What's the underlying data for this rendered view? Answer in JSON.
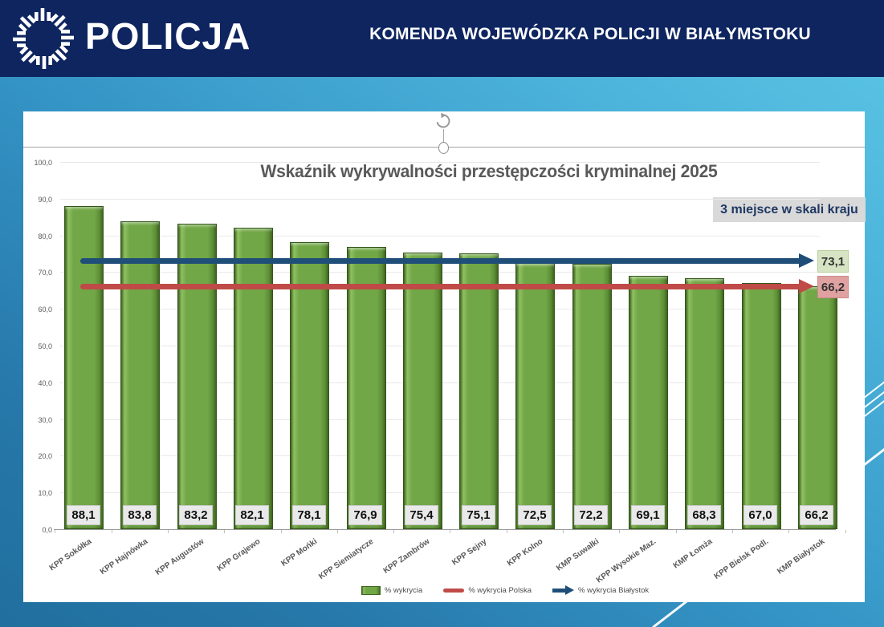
{
  "header": {
    "logo": "policja-star-logo",
    "wordmark": "POLICJA",
    "title": "KOMENDA WOJEWÓDZKA POLICJI W BIAŁYMSTOKU"
  },
  "chart": {
    "title": "Wskaźnik wykrywalności przestępczości kryminalnej 2025",
    "badge": "3 miejsce w skali kraju",
    "legend": [
      {
        "label": "% wykrycia",
        "swatch": "green-bar"
      },
      {
        "label": "% wykrycia Polska",
        "swatch": "red-line"
      },
      {
        "label": "% wykrycia Białystok",
        "swatch": "blue-arrow"
      }
    ]
  },
  "chart_data": {
    "type": "bar",
    "title": "Wskaźnik wykrywalności przestępczości kryminalnej 2025",
    "categories": [
      "KPP Sokółka",
      "KPP Hajnówka",
      "KPP Augustów",
      "KPP Grajewo",
      "KPP Mońki",
      "KPP Siemiatycze",
      "KPP Zambrów",
      "KPP Sejny",
      "KPP Kolno",
      "KMP Suwałki",
      "KPP Wysokie Maz.",
      "KMP Łomża",
      "KPP Bielsk Podl.",
      "KMP Białystok"
    ],
    "values": [
      88.1,
      83.8,
      83.2,
      82.1,
      78.1,
      76.9,
      75.4,
      75.1,
      72.5,
      72.2,
      69.1,
      68.3,
      67.0,
      66.2
    ],
    "value_labels": [
      "88,1",
      "83,8",
      "83,2",
      "82,1",
      "78,1",
      "76,9",
      "75,4",
      "75,1",
      "72,5",
      "72,2",
      "69,1",
      "68,3",
      "67,0",
      "66,2"
    ],
    "ylim": [
      0,
      100
    ],
    "ytick_step": 10,
    "ytick_labels": [
      "0,0",
      "10,0",
      "20,0",
      "30,0",
      "40,0",
      "50,0",
      "60,0",
      "70,0",
      "80,0",
      "90,0",
      "100,0"
    ],
    "grid": true,
    "legend_position": "bottom",
    "reference_lines": [
      {
        "name": "% wykrycia Białystok",
        "value": 73.1,
        "label": "73,1",
        "line_color": "#1f4e79",
        "tag_bg": "#d7e4c3",
        "tag_border": "#b9cf9d"
      },
      {
        "name": "% wykrycia Polska",
        "value": 66.2,
        "label": "66,2",
        "line_color": "#bf4a47",
        "tag_bg": "#dfa2a1",
        "tag_border": "#c98a89"
      }
    ]
  },
  "colors": {
    "header_bg": "#0e2560",
    "badge_bg": "#d9d9d9",
    "badge_text": "#1f3864",
    "bar_main": "#71a746",
    "bar_light": "#8fbf63",
    "bar_dark": "#41691f",
    "title_text": "#595959",
    "polska_line": "#bf4a47",
    "bialystok_line": "#1f4e79"
  }
}
